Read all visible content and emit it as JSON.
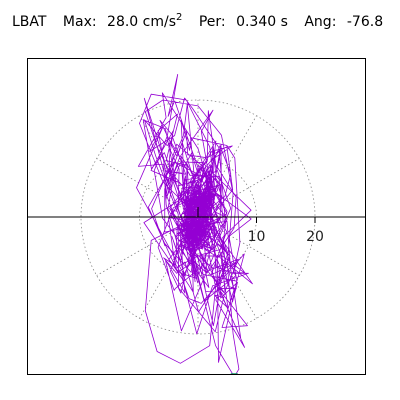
{
  "header": {
    "station": "LBAT",
    "max_label": "Max:",
    "max_value": "28.0 cm/s",
    "max_exp": "2",
    "per_label": "Per:",
    "per_value": "0.340 s",
    "ang_label": "Ang:",
    "ang_value": "-76.8"
  },
  "chart_data": {
    "type": "polar-particle-motion",
    "title": "LBAT  Max: 28.0 cm/s2  Per: 0.340 s  Ang: -76.8",
    "units": "cm/s2",
    "max": 28.0,
    "period_s": 0.34,
    "angle_deg": -76.8,
    "radial_ticks": [
      10,
      20
    ],
    "rings": [
      10,
      20
    ],
    "grid": true,
    "trace_color": "#9400d3",
    "marker_color": "#1e9e6e",
    "peak_point": {
      "x": 6.2,
      "y": -27.3
    }
  }
}
